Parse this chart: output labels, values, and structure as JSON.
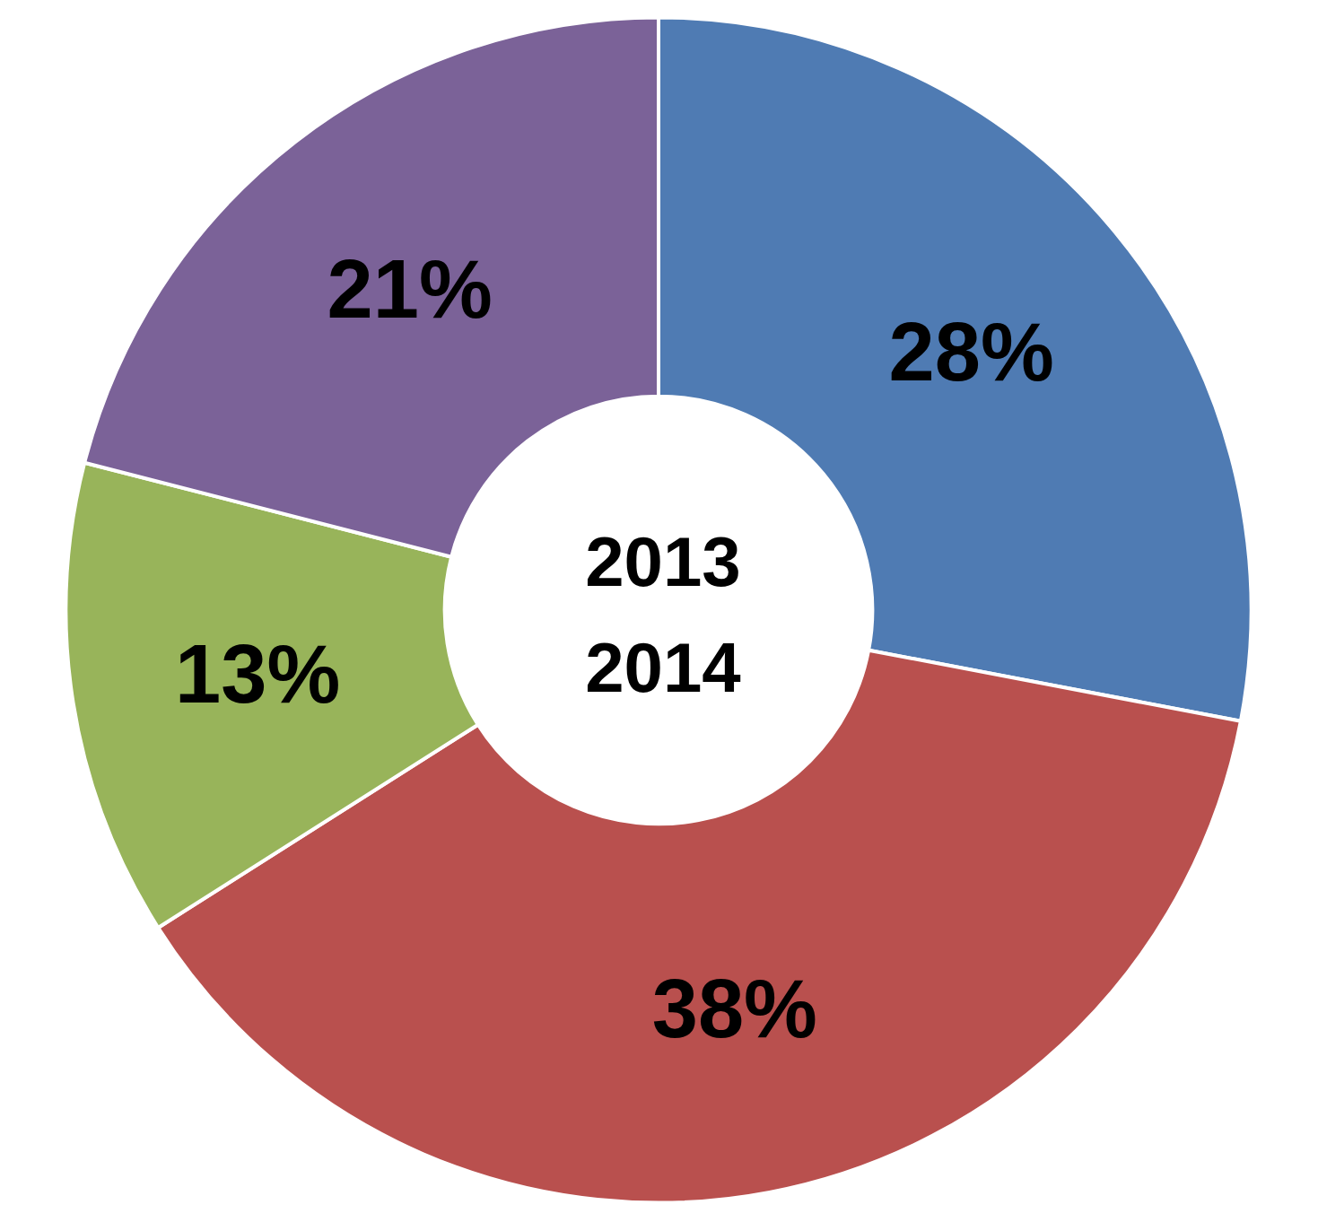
{
  "chart_data": {
    "type": "donut",
    "title": "2013\n2014",
    "categories": [
      null,
      null,
      null,
      null
    ],
    "values": [
      28,
      38,
      13,
      21
    ],
    "colors": [
      "#4f7bb3",
      "#b9504e",
      "#98b45a",
      "#7b6298"
    ],
    "value_labels": [
      "28%",
      "38%",
      "13%",
      "21%"
    ]
  }
}
